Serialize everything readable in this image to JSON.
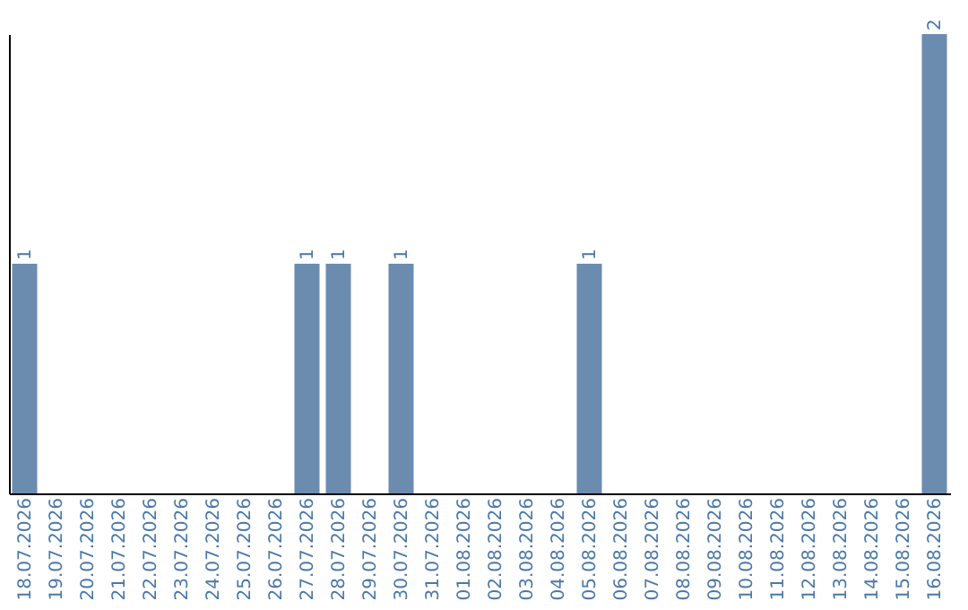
{
  "chart_data": {
    "type": "bar",
    "categories": [
      "18.07.2026",
      "19.07.2026",
      "20.07.2026",
      "21.07.2026",
      "22.07.2026",
      "23.07.2026",
      "24.07.2026",
      "25.07.2026",
      "26.07.2026",
      "27.07.2026",
      "28.07.2026",
      "29.07.2026",
      "30.07.2026",
      "31.07.2026",
      "01.08.2026",
      "02.08.2026",
      "03.08.2026",
      "04.08.2026",
      "05.08.2026",
      "06.08.2026",
      "07.08.2026",
      "08.08.2026",
      "09.08.2026",
      "10.08.2026",
      "11.08.2026",
      "12.08.2026",
      "13.08.2026",
      "14.08.2026",
      "15.08.2026",
      "16.08.2026"
    ],
    "values": [
      1,
      0,
      0,
      0,
      0,
      0,
      0,
      0,
      0,
      1,
      1,
      0,
      1,
      0,
      0,
      0,
      0,
      0,
      1,
      0,
      0,
      0,
      0,
      0,
      0,
      0,
      0,
      0,
      0,
      2
    ],
    "value_labels": [
      "1",
      null,
      null,
      null,
      null,
      null,
      null,
      null,
      null,
      "1",
      "1",
      null,
      "1",
      null,
      null,
      null,
      null,
      null,
      "1",
      null,
      null,
      null,
      null,
      null,
      null,
      null,
      null,
      null,
      null,
      "2"
    ],
    "color": "#6b8cae",
    "tick_labels": "x",
    "grid": false
  }
}
